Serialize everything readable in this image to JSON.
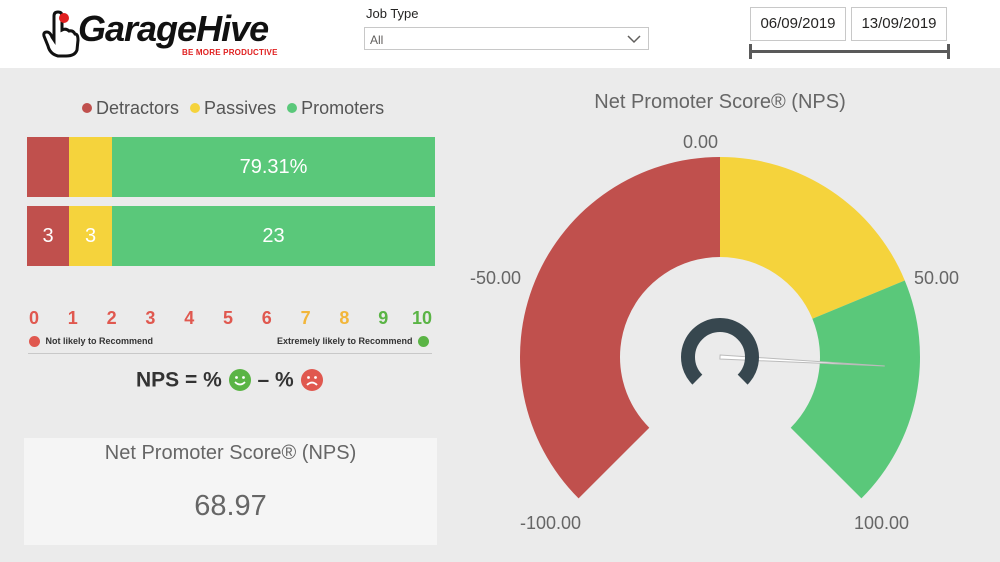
{
  "header": {
    "logo_text": "GarageHive",
    "logo_tagline": "BE MORE PRODUCTIVE",
    "job_type": {
      "label": "Job Type",
      "selected": "All"
    },
    "date_range": {
      "start": "06/09/2019",
      "end": "13/09/2019"
    }
  },
  "legend": {
    "items": [
      {
        "label": "Detractors",
        "color": "#c0504d"
      },
      {
        "label": "Passives",
        "color": "#f5d33c"
      },
      {
        "label": "Promoters",
        "color": "#5ac87a"
      }
    ]
  },
  "bars": {
    "percent_row": {
      "promoters_label": "79.31%"
    },
    "count_row": {
      "detractors": "3",
      "passives": "3",
      "promoters": "23"
    }
  },
  "scale": {
    "numbers": [
      "0",
      "1",
      "2",
      "3",
      "4",
      "5",
      "6",
      "7",
      "8",
      "9",
      "10"
    ],
    "colors": [
      "#e0584f",
      "#e0584f",
      "#e0584f",
      "#e0584f",
      "#e0584f",
      "#e0584f",
      "#e0584f",
      "#f2b63a",
      "#f2b63a",
      "#5ab445",
      "#5ab445"
    ],
    "low_caption": "Not likely to Recommend",
    "high_caption": "Extremely likely to Recommend"
  },
  "formula": {
    "prefix": "NPS = %",
    "middle": " – %"
  },
  "card": {
    "title": "Net Promoter Score® (NPS)",
    "value": "68.97"
  },
  "gauge": {
    "title": "Net Promoter Score® (NPS)",
    "labels": {
      "min": "-100.00",
      "neg50": "-50.00",
      "zero": "0.00",
      "pos50": "50.00",
      "max": "100.00"
    },
    "value": 68.97,
    "min": -100,
    "max": 100,
    "colors": {
      "red": "#c0504d",
      "yellow": "#f5d33c",
      "green": "#5ac87a",
      "needle_hub": "#37474f"
    }
  },
  "chart_data": {
    "type": "bar",
    "categories": [
      "Detractors",
      "Passives",
      "Promoters"
    ],
    "values": [
      3,
      3,
      23
    ],
    "promoters_percent": 79.31,
    "nps_value": 68.97,
    "gauge_range": [
      -100,
      100
    ]
  }
}
